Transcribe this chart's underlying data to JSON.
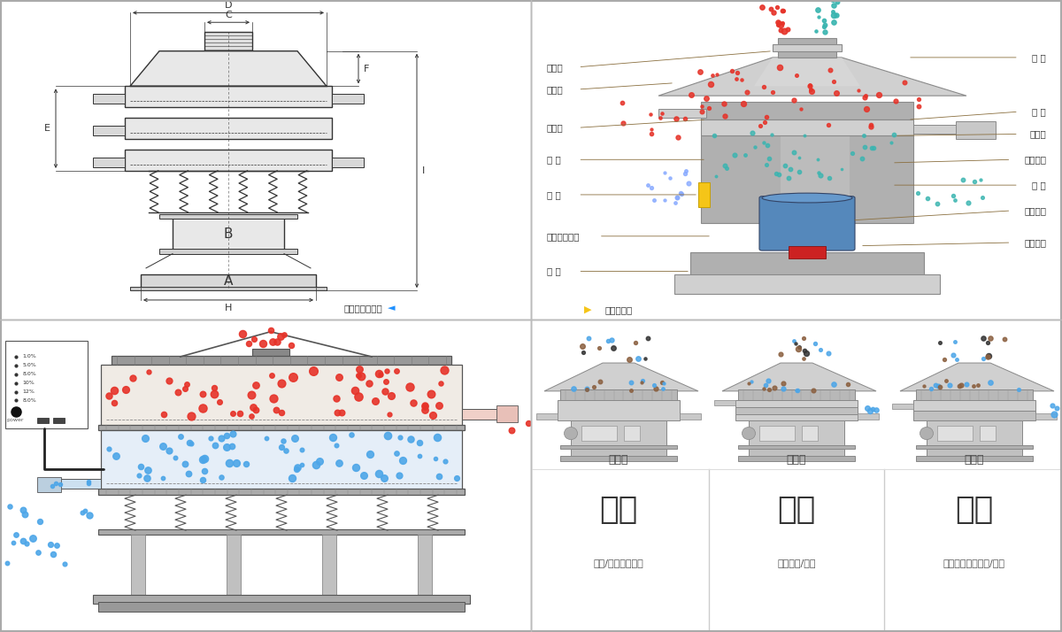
{
  "bg_color": "#ffffff",
  "border_color": "#cccccc",
  "struct_labels_left": [
    "进料口",
    "防尘盖",
    "出料口",
    "束 环",
    "弹 簧",
    "运输固定螺栓",
    "机 座"
  ],
  "struct_labels_right": [
    "筛 网",
    "网 架",
    "加重块",
    "上部重锤",
    "筛 盘",
    "振动电机",
    "下部重锤"
  ],
  "bottom_right_modes": [
    "单层式",
    "三层式",
    "双层式"
  ],
  "bottom_right_titles": [
    "分级",
    "过滤",
    "除杂"
  ],
  "bottom_right_descs": [
    "颗粒/粉末准确分级",
    "去除异物/结块",
    "去除液体中的颗粒/异物"
  ],
  "red_dot_color": "#e63329",
  "blue_dot_color": "#4da6e8",
  "brown_dot_color": "#8B6040",
  "teal_dot_color": "#4dbfbf"
}
